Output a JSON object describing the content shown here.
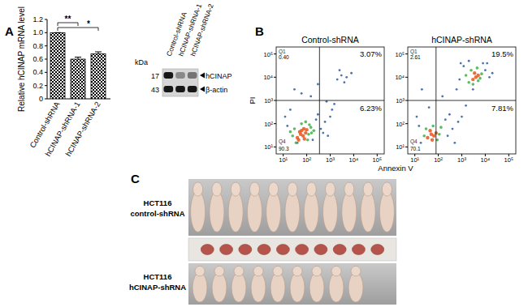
{
  "panel_labels": [
    "A",
    "B",
    "C"
  ],
  "chart_data": [
    {
      "type": "bar",
      "y_label": "Relative hCINAP mRNA level",
      "categories": [
        "Control-shRNA",
        "hCINAP-shRNA-1",
        "hCINAP-shRNA-2"
      ],
      "values": [
        1.0,
        0.6,
        0.68
      ],
      "errors": [
        0,
        0.03,
        0.03
      ],
      "color": "#000000",
      "ylim": [
        0,
        1.2
      ],
      "yticks": [
        0,
        0.2,
        0.4,
        0.6,
        0.8,
        {
          "value": 1,
          "label": "1.0"
        },
        1.2
      ],
      "significance": [
        {
          "from": 0,
          "to": 1,
          "label": "**"
        },
        {
          "from": 0,
          "to": 2,
          "label": "*"
        }
      ]
    },
    {
      "type": "scatter",
      "title": "Control-shRNA",
      "log": true,
      "xlim": [
        5,
        200000
      ],
      "ylim": [
        5,
        200000
      ],
      "xticks": [
        {
          "value": 10,
          "label": "10¹"
        },
        {
          "value": 100,
          "label": "10²"
        },
        {
          "value": 1000,
          "label": "10³"
        },
        {
          "value": 10000,
          "label": "10⁴"
        },
        {
          "value": 100000,
          "label": "10⁵"
        }
      ],
      "yticks": [
        {
          "value": 10,
          "label": "10¹"
        },
        {
          "value": 100,
          "label": "10²"
        },
        {
          "value": 1000,
          "label": "10³"
        },
        {
          "value": 10000,
          "label": "10⁴"
        },
        {
          "value": 100000,
          "label": "10⁵"
        }
      ],
      "gates": {
        "x": 350,
        "y": 1000
      },
      "quadrant_names": [
        "Q1",
        null,
        "Q4",
        null
      ],
      "quadrant_labels": [
        "0.40",
        "3.07%",
        "90.3",
        "6.23%"
      ],
      "series": [
        {
          "color": "#2c5aa0",
          "x": [
            15,
            12,
            250,
            300,
            400,
            600,
            1000,
            180,
            20,
            500,
            800,
            1500,
            2000,
            3000,
            5000,
            2500,
            4000,
            8000,
            30,
            300,
            700,
            60,
            150,
            40,
            1200
          ],
          "values": [
            80,
            200,
            150,
            250,
            60,
            120,
            200,
            20,
            400,
            40,
            30,
            700,
            8000,
            12000,
            10000,
            20000,
            6000,
            15000,
            3000,
            5000,
            900,
            2000,
            1500,
            15,
            400
          ]
        },
        {
          "color": "#3cb043",
          "x": [
            25,
            30,
            120,
            150,
            35,
            110,
            130,
            60,
            200,
            20,
            90,
            160
          ],
          "values": [
            30,
            60,
            35,
            70,
            15,
            20,
            90,
            100,
            50,
            45,
            120,
            40
          ]
        },
        {
          "color": "#e8561c",
          "x": [
            40,
            55,
            70,
            90,
            60,
            45,
            80,
            100,
            50,
            75
          ],
          "values": [
            25,
            35,
            30,
            40,
            50,
            20,
            22,
            55,
            45,
            60
          ]
        }
      ]
    },
    {
      "type": "scatter",
      "title": "hCINAP-shRNA",
      "log": true,
      "xlim": [
        5,
        200000
      ],
      "ylim": [
        5,
        200000
      ],
      "xticks": [
        {
          "value": 10,
          "label": "10¹"
        },
        {
          "value": 100,
          "label": "10²"
        },
        {
          "value": 1000,
          "label": "10³"
        },
        {
          "value": 10000,
          "label": "10⁴"
        },
        {
          "value": 100000,
          "label": "10⁵"
        }
      ],
      "yticks": [
        {
          "value": 10,
          "label": "10¹"
        },
        {
          "value": 100,
          "label": "10²"
        },
        {
          "value": 1000,
          "label": "10³"
        },
        {
          "value": 10000,
          "label": "10⁴"
        },
        {
          "value": 100000,
          "label": "10⁵"
        }
      ],
      "gates": {
        "x": 80,
        "y": 1000
      },
      "quadrant_names": [
        "Q1",
        null,
        "Q4",
        null
      ],
      "quadrant_labels": [
        "2.61",
        "19.5%",
        "70.1",
        "7.81%"
      ],
      "series": [
        {
          "color": "#2c5aa0",
          "x": [
            15,
            12,
            200,
            300,
            400,
            700,
            1000,
            1200,
            900,
            800,
            10000,
            15000,
            12000,
            2000,
            20,
            40,
            150,
            600,
            250,
            1500,
            20000,
            3000,
            8000,
            500,
            18
          ],
          "values": [
            80,
            200,
            150,
            250,
            60,
            120,
            200,
            30000,
            40000,
            8000,
            20000,
            10000,
            40000,
            50000,
            3000,
            500,
            1500,
            3000,
            30,
            600,
            15000,
            3000,
            40000,
            15,
            15
          ]
        },
        {
          "color": "#3cb043",
          "x": [
            25,
            30,
            110,
            130,
            90,
            60,
            2000,
            2500,
            6000,
            7000,
            4500,
            3000,
            1500,
            5000
          ],
          "values": [
            30,
            60,
            35,
            70,
            20,
            80,
            6000,
            20000,
            9000,
            14000,
            25000,
            5000,
            12000,
            7000
          ]
        },
        {
          "color": "#e8561c",
          "x": [
            35,
            50,
            65,
            80,
            45,
            55,
            3000,
            4000,
            5000,
            3500
          ],
          "values": [
            25,
            35,
            30,
            40,
            50,
            20,
            8000,
            10000,
            12000,
            15000
          ]
        }
      ]
    }
  ],
  "flow_axes": {
    "x_label": "Annexin V",
    "y_label": "PI"
  },
  "western_blot": {
    "lanes": [
      "Control-shRNA",
      "hCINAP-shRNA-1",
      "hCINAP-shRNA-2"
    ],
    "unit": "kDa",
    "markers": [
      17,
      43
    ],
    "bands": [
      {
        "name": "hCINAP",
        "intensity": [
          1,
          0.45,
          0.55
        ]
      },
      {
        "name": "β-actin",
        "intensity": [
          1,
          1,
          1
        ]
      }
    ]
  },
  "xenograft": {
    "groups": [
      {
        "label": [
          "HCT116",
          "control-shRNA"
        ],
        "mice": 11,
        "tumors": 10
      },
      {
        "label": [
          "HCT116",
          "hCINAP-shRNA"
        ],
        "mice": 9
      }
    ]
  }
}
